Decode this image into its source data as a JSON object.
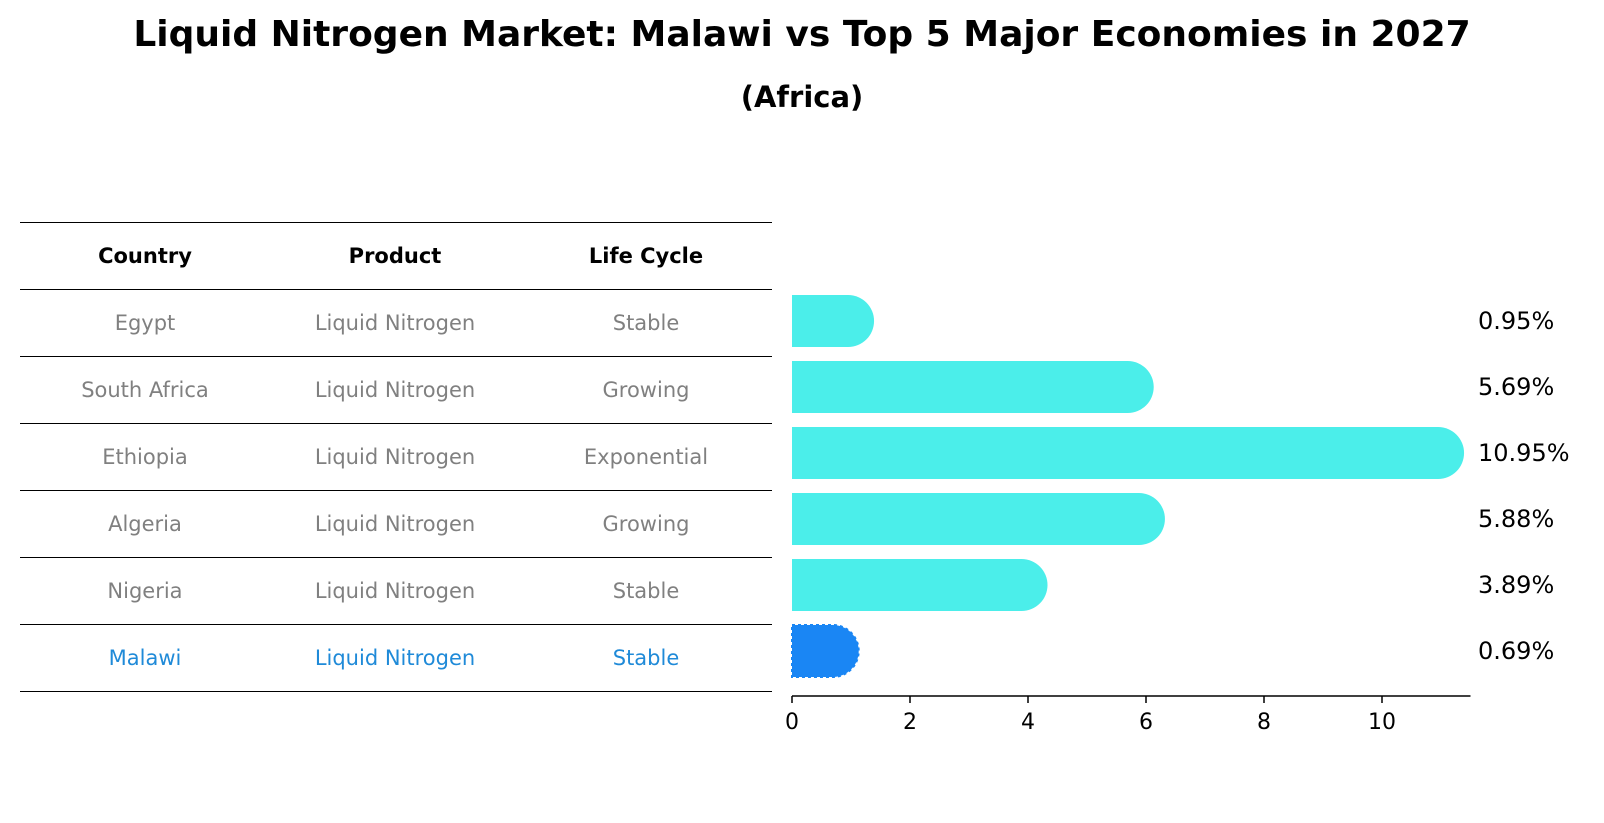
{
  "title": "Liquid Nitrogen Market: Malawi vs Top 5 Major Economies in 2027",
  "subtitle": "(Africa)",
  "table": {
    "headers": [
      "Country",
      "Product",
      "Life Cycle"
    ],
    "rows": [
      {
        "country": "Egypt",
        "product": "Liquid Nitrogen",
        "life_cycle": "Stable"
      },
      {
        "country": "South Africa",
        "product": "Liquid Nitrogen",
        "life_cycle": "Growing"
      },
      {
        "country": "Ethiopia",
        "product": "Liquid Nitrogen",
        "life_cycle": "Exponential"
      },
      {
        "country": "Algeria",
        "product": "Liquid Nitrogen",
        "life_cycle": "Growing"
      },
      {
        "country": "Nigeria",
        "product": "Liquid Nitrogen",
        "life_cycle": "Stable"
      },
      {
        "country": "Malawi",
        "product": "Liquid Nitrogen",
        "life_cycle": "Stable"
      }
    ],
    "highlight_color": "#1f8ad8",
    "text_color": "#808080"
  },
  "chart_data": {
    "type": "bar",
    "orientation": "horizontal",
    "categories": [
      "Egypt",
      "South Africa",
      "Ethiopia",
      "Algeria",
      "Nigeria",
      "Malawi"
    ],
    "values": [
      0.95,
      5.69,
      10.95,
      5.88,
      3.89,
      0.69
    ],
    "value_labels": [
      "0.95%",
      "5.69%",
      "10.95%",
      "5.88%",
      "3.89%",
      "0.69%"
    ],
    "highlight": "Malawi",
    "bar_color": "#4beeea",
    "highlight_color": "#1a86f4",
    "xlim": [
      0,
      11.5
    ],
    "xticks": [
      0,
      2,
      4,
      6,
      8,
      10
    ],
    "grid": false
  }
}
